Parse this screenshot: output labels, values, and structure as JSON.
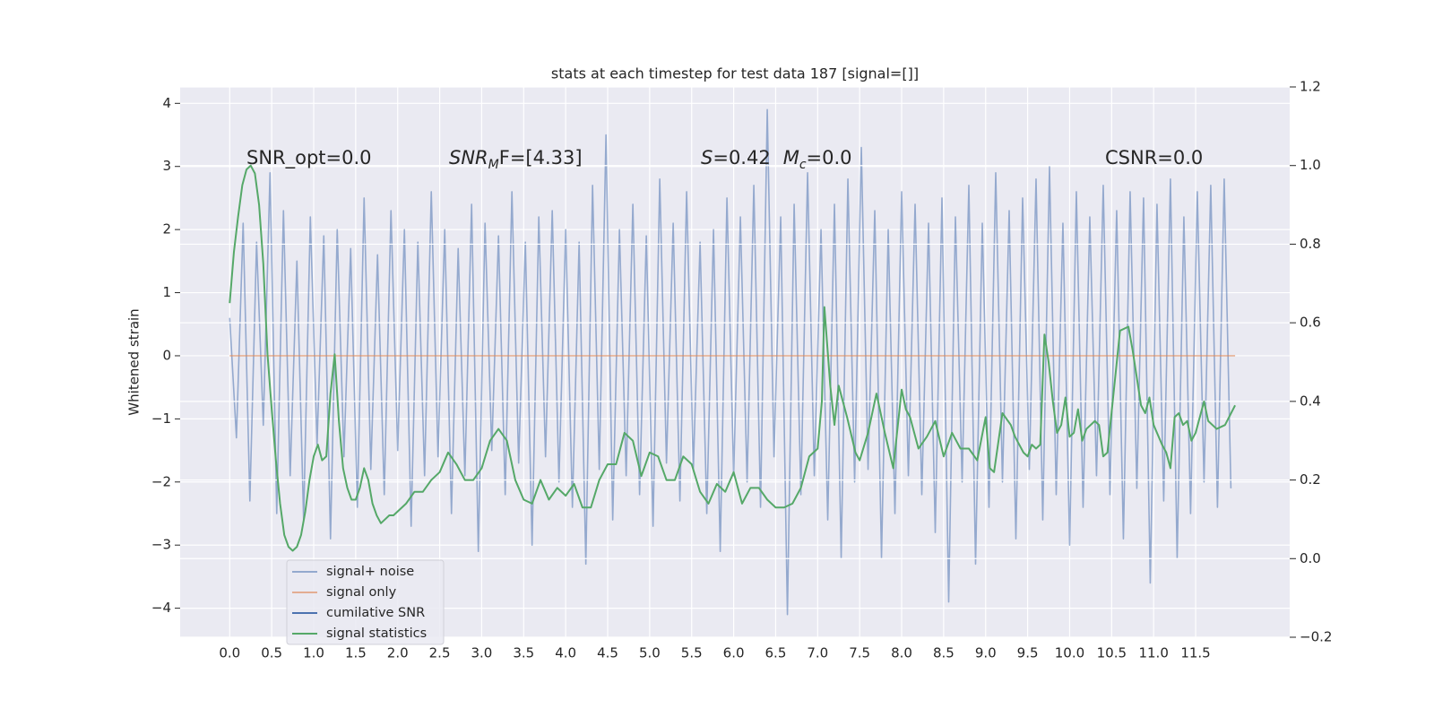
{
  "chart_data": {
    "type": "line",
    "title": "stats at each timestep for test data 187 [signal=[]]",
    "ylabel": "Whitened strain",
    "annotations": [
      [
        {
          "text": "SNR_opt=0.0",
          "style": "normal"
        }
      ],
      [
        {
          "text": "SNR",
          "style": "italic"
        },
        {
          "text": "M",
          "style": "sub"
        },
        {
          "text": "F=[4.33]",
          "style": "normal"
        }
      ],
      [
        {
          "text": "S",
          "style": "italic"
        },
        {
          "text": "=0.42",
          "style": "normal"
        },
        {
          "text": "M",
          "style": "italic"
        },
        {
          "text": "c",
          "style": "sub"
        },
        {
          "text": "=0.0",
          "style": "normal"
        }
      ],
      [
        {
          "text": "CSNR=0.0",
          "style": "normal"
        }
      ]
    ],
    "xlim": [
      -0.59,
      12.62
    ],
    "xticks": [
      {
        "value": 0,
        "label": "0.0"
      },
      0.5,
      {
        "value": 1,
        "label": "1.0"
      },
      1.5,
      {
        "value": 2,
        "label": "2.0"
      },
      2.5,
      {
        "value": 3,
        "label": "3.0"
      },
      3.5,
      {
        "value": 4,
        "label": "4.0"
      },
      4.5,
      {
        "value": 5,
        "label": "5.0"
      },
      5.5,
      {
        "value": 6,
        "label": "6.0"
      },
      6.5,
      {
        "value": 7,
        "label": "7.0"
      },
      7.5,
      {
        "value": 8,
        "label": "8.0"
      },
      8.5,
      {
        "value": 9,
        "label": "9.0"
      },
      9.5,
      {
        "value": 10,
        "label": "10.0"
      },
      10.5,
      {
        "value": 11,
        "label": "11.0"
      },
      11.5
    ],
    "ylim": [
      -4.46,
      4.26
    ],
    "yticks": [
      {
        "value": -4,
        "label": "−4"
      },
      {
        "value": -3,
        "label": "−3"
      },
      {
        "value": -2,
        "label": "−2"
      },
      {
        "value": -1,
        "label": "−1"
      },
      0,
      1,
      2,
      3,
      4
    ],
    "y2lim": [
      -0.2,
      1.2
    ],
    "y2ticks": [
      {
        "value": -0.2,
        "label": "−0.2"
      },
      {
        "value": 0,
        "label": "0.0"
      },
      0.2,
      0.4,
      0.6,
      0.8,
      {
        "value": 1,
        "label": "1.0"
      },
      1.2
    ],
    "grid": true,
    "legend": "lower left",
    "series": [
      {
        "name": "signal+ noise",
        "color": "#4c72b0",
        "alpha": 0.55,
        "axis": "y",
        "x": [
          0,
          0.08,
          0.16,
          0.24,
          0.32,
          0.4,
          0.48,
          0.56,
          0.64,
          0.72,
          0.8,
          0.88,
          0.96,
          1.04,
          1.12,
          1.2,
          1.28,
          1.36,
          1.44,
          1.52,
          1.6,
          1.68,
          1.76,
          1.84,
          1.92,
          2,
          2.08,
          2.16,
          2.24,
          2.32,
          2.4,
          2.48,
          2.56,
          2.64,
          2.72,
          2.8,
          2.88,
          2.96,
          3.04,
          3.12,
          3.2,
          3.28,
          3.36,
          3.44,
          3.52,
          3.6,
          3.68,
          3.76,
          3.84,
          3.92,
          4,
          4.08,
          4.16,
          4.24,
          4.32,
          4.4,
          4.48,
          4.56,
          4.64,
          4.72,
          4.8,
          4.88,
          4.96,
          5.04,
          5.12,
          5.2,
          5.28,
          5.36,
          5.44,
          5.52,
          5.6,
          5.68,
          5.76,
          5.84,
          5.92,
          6,
          6.08,
          6.16,
          6.24,
          6.32,
          6.4,
          6.48,
          6.56,
          6.64,
          6.72,
          6.8,
          6.88,
          6.96,
          7.04,
          7.12,
          7.2,
          7.28,
          7.36,
          7.44,
          7.52,
          7.6,
          7.68,
          7.76,
          7.84,
          7.92,
          8,
          8.08,
          8.16,
          8.24,
          8.32,
          8.4,
          8.48,
          8.56,
          8.64,
          8.72,
          8.8,
          8.88,
          8.96,
          9.04,
          9.12,
          9.2,
          9.28,
          9.36,
          9.44,
          9.52,
          9.6,
          9.68,
          9.76,
          9.84,
          9.92,
          10,
          10.08,
          10.16,
          10.24,
          10.32,
          10.4,
          10.48,
          10.56,
          10.64,
          10.72,
          10.8,
          10.88,
          10.96,
          11.04,
          11.12,
          11.2,
          11.28,
          11.36,
          11.44,
          11.52,
          11.6,
          11.68,
          11.76,
          11.84,
          11.92
        ],
        "values": [
          0.6,
          -1.3,
          2.1,
          -2.3,
          1.8,
          -1.1,
          2.9,
          -2.5,
          2.3,
          -1.9,
          1.5,
          -2.6,
          2.2,
          -1.4,
          1.9,
          -2.9,
          2.0,
          -1.6,
          1.7,
          -2.4,
          2.5,
          -1.8,
          1.6,
          -2.2,
          2.3,
          -1.5,
          2.0,
          -2.7,
          1.8,
          -1.9,
          2.6,
          -1.6,
          2.0,
          -2.5,
          1.7,
          -1.9,
          2.4,
          -3.1,
          2.1,
          -1.5,
          1.9,
          -2.2,
          2.6,
          -1.7,
          1.8,
          -3.0,
          2.2,
          -1.6,
          2.3,
          -2.0,
          2.0,
          -2.4,
          1.8,
          -3.3,
          2.7,
          -1.8,
          3.5,
          -2.6,
          2.0,
          -1.9,
          2.4,
          -2.2,
          1.9,
          -2.7,
          2.8,
          -1.7,
          2.1,
          -2.3,
          2.6,
          -1.8,
          1.8,
          -2.5,
          2.0,
          -3.1,
          2.5,
          -1.9,
          2.2,
          -2.0,
          2.7,
          -2.4,
          3.9,
          -1.6,
          2.2,
          -4.1,
          2.4,
          -2.2,
          2.9,
          -1.9,
          2.0,
          -2.6,
          2.4,
          -3.2,
          2.8,
          -2.0,
          3.3,
          -1.8,
          2.3,
          -3.2,
          2.0,
          -2.5,
          2.6,
          -1.9,
          2.4,
          -2.2,
          2.1,
          -2.8,
          2.5,
          -3.9,
          2.2,
          -2.0,
          2.7,
          -3.3,
          2.1,
          -2.4,
          2.9,
          -2.0,
          2.3,
          -2.9,
          2.5,
          -1.8,
          2.8,
          -2.6,
          3.0,
          -2.2,
          2.1,
          -3.0,
          2.6,
          -2.4,
          2.2,
          -1.9,
          2.7,
          -2.2,
          2.3,
          -2.9,
          2.6,
          -2.1,
          2.5,
          -3.6,
          2.4,
          -2.3,
          2.8,
          -3.2,
          2.2,
          -2.5,
          2.6,
          -2.0,
          2.7,
          -2.4,
          2.8,
          -2.1
        ]
      },
      {
        "name": "signal only",
        "color": "#dd8452",
        "alpha": 0.6,
        "axis": "y",
        "x": [
          0,
          11.97
        ],
        "values": [
          0,
          0
        ]
      },
      {
        "name": "cumilative SNR",
        "color": "#4c72b0",
        "alpha": 1,
        "axis": "y",
        "x": [],
        "values": []
      },
      {
        "name": "signal statistics",
        "color": "#55a868",
        "alpha": 1,
        "axis": "y2",
        "x": [
          0,
          0.05,
          0.1,
          0.15,
          0.2,
          0.25,
          0.3,
          0.35,
          0.4,
          0.45,
          0.5,
          0.55,
          0.6,
          0.65,
          0.7,
          0.75,
          0.8,
          0.85,
          0.9,
          0.95,
          1.0,
          1.05,
          1.1,
          1.15,
          1.2,
          1.25,
          1.3,
          1.35,
          1.4,
          1.45,
          1.5,
          1.55,
          1.6,
          1.65,
          1.7,
          1.75,
          1.8,
          1.85,
          1.9,
          1.95,
          2.0,
          2.1,
          2.2,
          2.3,
          2.4,
          2.5,
          2.6,
          2.7,
          2.8,
          2.9,
          3.0,
          3.1,
          3.2,
          3.3,
          3.4,
          3.5,
          3.6,
          3.7,
          3.8,
          3.9,
          4.0,
          4.1,
          4.2,
          4.3,
          4.4,
          4.5,
          4.6,
          4.7,
          4.8,
          4.9,
          5.0,
          5.1,
          5.2,
          5.3,
          5.4,
          5.5,
          5.6,
          5.7,
          5.8,
          5.9,
          6.0,
          6.1,
          6.2,
          6.3,
          6.4,
          6.5,
          6.6,
          6.7,
          6.8,
          6.9,
          7.0,
          7.05,
          7.08,
          7.15,
          7.2,
          7.25,
          7.35,
          7.45,
          7.5,
          7.6,
          7.7,
          7.8,
          7.9,
          8.0,
          8.05,
          8.1,
          8.2,
          8.3,
          8.4,
          8.5,
          8.6,
          8.7,
          8.8,
          8.9,
          9.0,
          9.05,
          9.1,
          9.2,
          9.3,
          9.35,
          9.45,
          9.5,
          9.55,
          9.6,
          9.65,
          9.7,
          9.75,
          9.8,
          9.85,
          9.9,
          9.95,
          10.0,
          10.05,
          10.1,
          10.15,
          10.2,
          10.3,
          10.35,
          10.4,
          10.45,
          10.6,
          10.7,
          10.75,
          10.85,
          10.9,
          10.95,
          11.0,
          11.1,
          11.15,
          11.2,
          11.25,
          11.3,
          11.35,
          11.4,
          11.45,
          11.5,
          11.6,
          11.65,
          11.75,
          11.85,
          11.97
        ],
        "values": [
          0.65,
          0.78,
          0.87,
          0.95,
          0.99,
          1.0,
          0.98,
          0.9,
          0.75,
          0.52,
          0.38,
          0.25,
          0.14,
          0.06,
          0.03,
          0.02,
          0.03,
          0.06,
          0.12,
          0.2,
          0.26,
          0.29,
          0.25,
          0.26,
          0.42,
          0.52,
          0.35,
          0.23,
          0.18,
          0.15,
          0.15,
          0.18,
          0.23,
          0.2,
          0.14,
          0.11,
          0.09,
          0.1,
          0.11,
          0.11,
          0.12,
          0.14,
          0.17,
          0.17,
          0.2,
          0.22,
          0.27,
          0.24,
          0.2,
          0.2,
          0.23,
          0.3,
          0.33,
          0.3,
          0.2,
          0.15,
          0.14,
          0.2,
          0.15,
          0.18,
          0.16,
          0.19,
          0.13,
          0.13,
          0.2,
          0.24,
          0.24,
          0.32,
          0.3,
          0.21,
          0.27,
          0.26,
          0.2,
          0.2,
          0.26,
          0.24,
          0.17,
          0.14,
          0.19,
          0.17,
          0.22,
          0.14,
          0.18,
          0.18,
          0.15,
          0.13,
          0.13,
          0.14,
          0.18,
          0.26,
          0.28,
          0.4,
          0.64,
          0.44,
          0.34,
          0.44,
          0.36,
          0.27,
          0.25,
          0.32,
          0.42,
          0.32,
          0.23,
          0.43,
          0.38,
          0.36,
          0.28,
          0.31,
          0.35,
          0.26,
          0.32,
          0.28,
          0.28,
          0.25,
          0.36,
          0.23,
          0.22,
          0.37,
          0.34,
          0.31,
          0.27,
          0.26,
          0.29,
          0.28,
          0.29,
          0.57,
          0.5,
          0.4,
          0.32,
          0.34,
          0.41,
          0.31,
          0.32,
          0.38,
          0.3,
          0.33,
          0.35,
          0.34,
          0.26,
          0.27,
          0.58,
          0.59,
          0.53,
          0.39,
          0.37,
          0.41,
          0.34,
          0.29,
          0.27,
          0.23,
          0.36,
          0.37,
          0.34,
          0.35,
          0.3,
          0.32,
          0.4,
          0.35,
          0.33,
          0.34,
          0.39
        ]
      }
    ]
  }
}
